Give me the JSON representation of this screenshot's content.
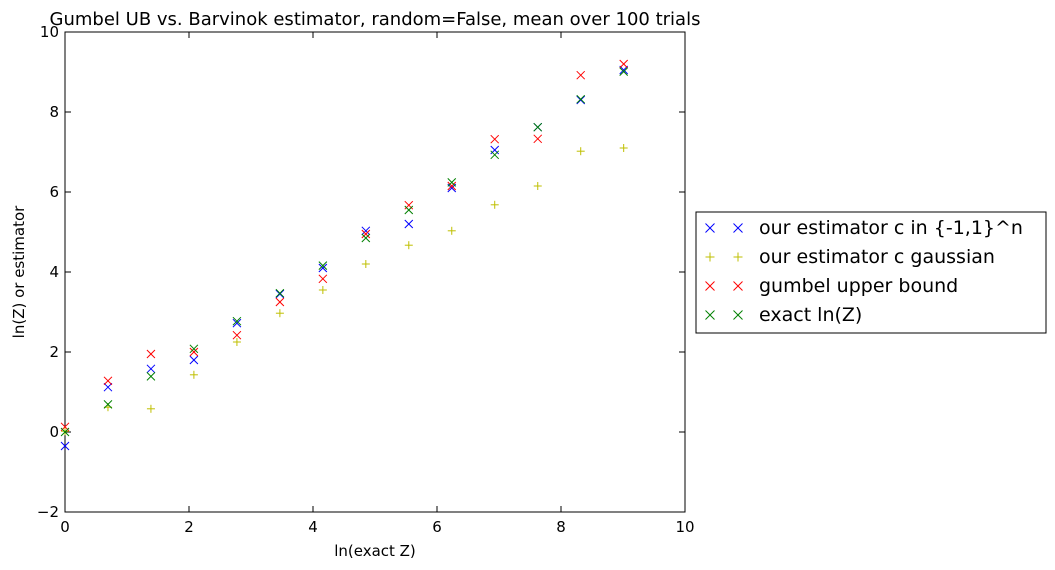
{
  "chart_data": {
    "type": "scatter",
    "title": "Gumbel UB vs. Barvinok estimator, random=False, mean over 100 trials",
    "xlabel": "ln(exact Z)",
    "ylabel": "ln(Z) or estimator",
    "xlim": [
      0,
      10
    ],
    "ylim": [
      -2,
      10
    ],
    "xticks": [
      0,
      2,
      4,
      6,
      8,
      10
    ],
    "yticks": [
      -2,
      0,
      2,
      4,
      6,
      8,
      10
    ],
    "xtick_labels": [
      "0",
      "2",
      "4",
      "6",
      "8",
      "10"
    ],
    "ytick_labels": [
      "−2",
      "0",
      "2",
      "4",
      "6",
      "8",
      "10"
    ],
    "grid": false,
    "legend_position": "outside right",
    "x": [
      0.0,
      0.693,
      1.386,
      2.079,
      2.773,
      3.466,
      4.159,
      4.852,
      5.545,
      6.238,
      6.931,
      7.625,
      8.318,
      9.011
    ],
    "series": [
      {
        "name": "our estimator c in {-1,1}^n",
        "marker": "x",
        "color": "#0000ff",
        "values": [
          -0.35,
          1.12,
          1.58,
          1.8,
          2.72,
          3.45,
          4.1,
          5.03,
          5.2,
          6.1,
          7.05,
          7.62,
          8.3,
          9.05
        ]
      },
      {
        "name": "our estimator c gaussian",
        "marker": "+",
        "color": "#bfbf00",
        "values": [
          0.02,
          0.62,
          0.58,
          1.43,
          2.25,
          2.97,
          3.55,
          4.2,
          4.67,
          5.03,
          5.68,
          6.15,
          7.02,
          7.1
        ]
      },
      {
        "name": "gumbel upper bound",
        "marker": "x",
        "color": "#ff0000",
        "values": [
          0.13,
          1.28,
          1.95,
          2.0,
          2.42,
          3.25,
          3.83,
          4.95,
          5.67,
          6.15,
          7.32,
          7.33,
          8.92,
          9.2
        ]
      },
      {
        "name": "exact ln(Z)",
        "marker": "x",
        "color": "#008000",
        "values": [
          0.0,
          0.69,
          1.39,
          2.08,
          2.77,
          3.47,
          4.16,
          4.85,
          5.55,
          6.24,
          6.93,
          7.62,
          8.32,
          9.01
        ]
      }
    ]
  }
}
